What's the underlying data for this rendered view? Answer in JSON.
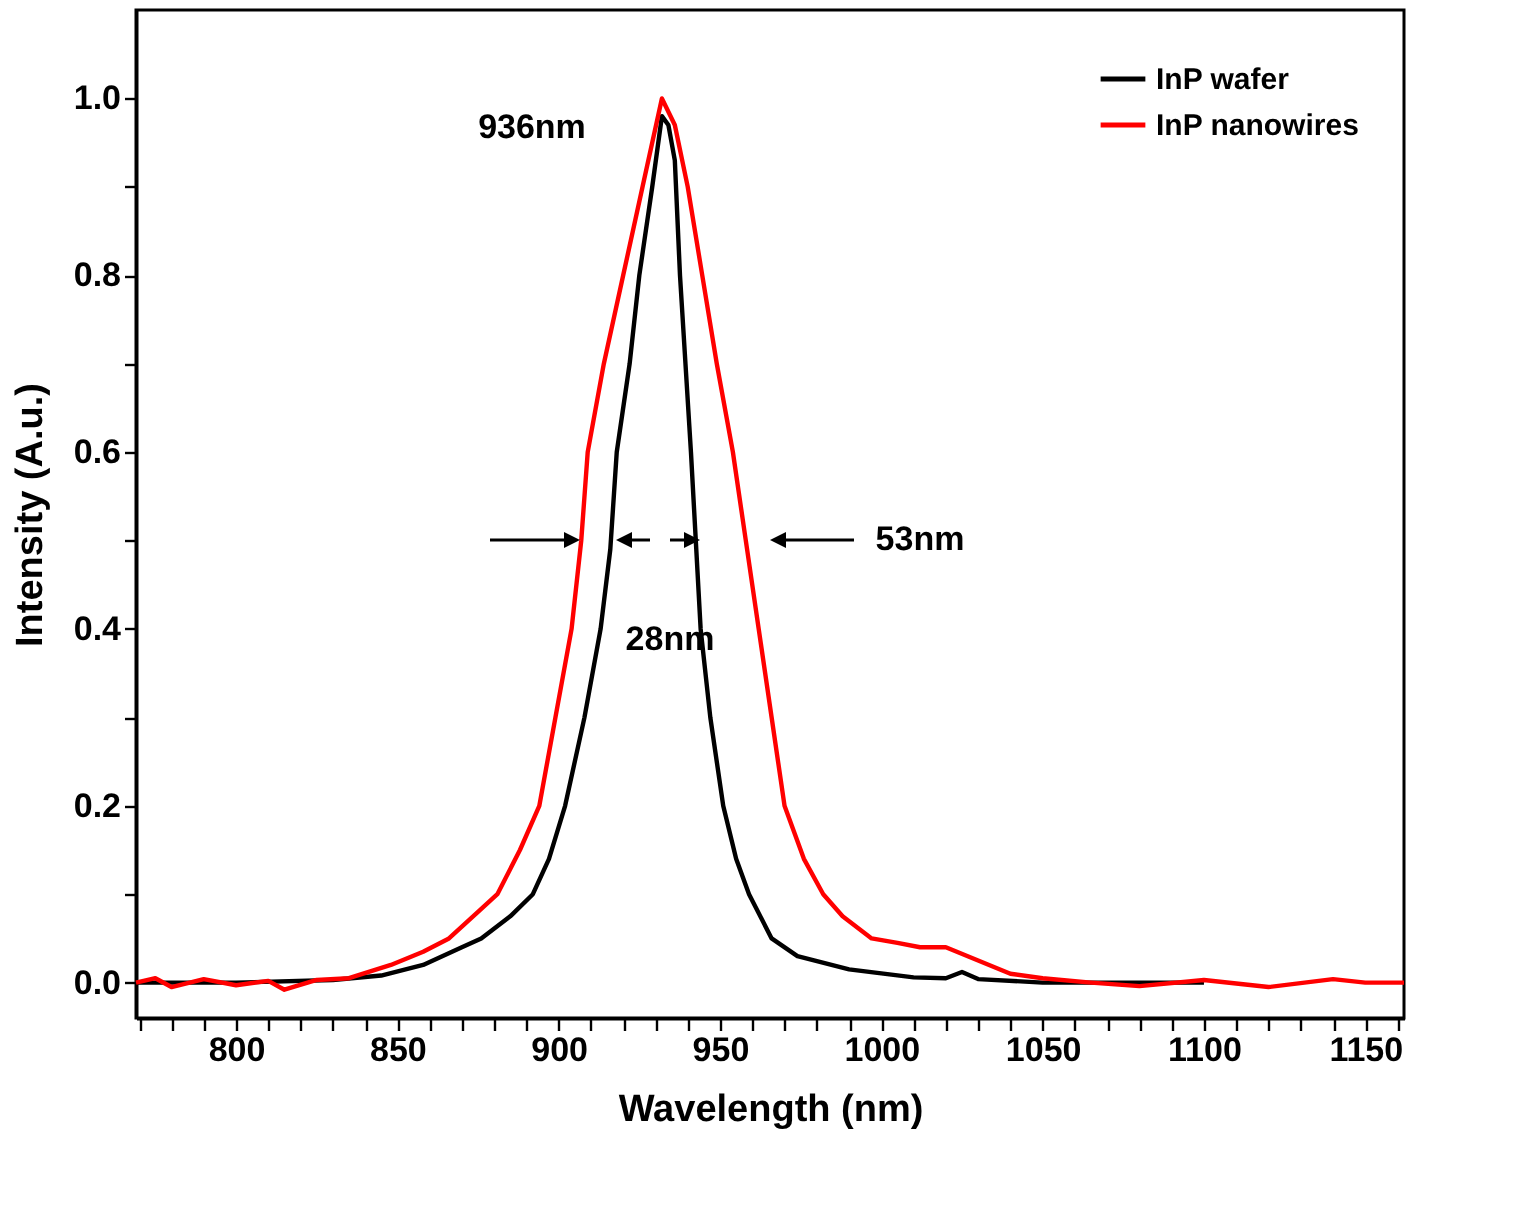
{
  "chart_data": {
    "type": "line",
    "xlabel": "Wavelength (nm)",
    "ylabel": "Intensity (A.u.)",
    "xlim": [
      769,
      1162
    ],
    "ylim": [
      -0.04,
      1.1
    ],
    "xticks": [
      {
        "value": 770,
        "label": null
      },
      {
        "value": 780,
        "label": null
      },
      {
        "value": 790,
        "label": null
      },
      800,
      {
        "value": 810,
        "label": null
      },
      {
        "value": 820,
        "label": null
      },
      {
        "value": 830,
        "label": null
      },
      {
        "value": 840,
        "label": null
      },
      850,
      {
        "value": 860,
        "label": null
      },
      {
        "value": 870,
        "label": null
      },
      {
        "value": 880,
        "label": null
      },
      {
        "value": 890,
        "label": null
      },
      900,
      {
        "value": 910,
        "label": null
      },
      {
        "value": 920,
        "label": null
      },
      {
        "value": 930,
        "label": null
      },
      {
        "value": 940,
        "label": null
      },
      950,
      {
        "value": 960,
        "label": null
      },
      {
        "value": 970,
        "label": null
      },
      {
        "value": 980,
        "label": null
      },
      {
        "value": 990,
        "label": null
      },
      1000,
      {
        "value": 1010,
        "label": null
      },
      {
        "value": 1020,
        "label": null
      },
      {
        "value": 1030,
        "label": null
      },
      {
        "value": 1040,
        "label": null
      },
      1050,
      {
        "value": 1060,
        "label": null
      },
      {
        "value": 1070,
        "label": null
      },
      {
        "value": 1080,
        "label": null
      },
      {
        "value": 1090,
        "label": null
      },
      1100,
      {
        "value": 1110,
        "label": null
      },
      {
        "value": 1120,
        "label": null
      },
      {
        "value": 1130,
        "label": null
      },
      {
        "value": 1140,
        "label": null
      },
      1150,
      {
        "value": 1160,
        "label": null
      }
    ],
    "yticks": [
      {
        "value": 0,
        "label": "0.0"
      },
      {
        "value": 0.1,
        "label": null
      },
      0.2,
      {
        "value": 0.3,
        "label": null
      },
      0.4,
      {
        "value": 0.5,
        "label": null
      },
      0.6,
      {
        "value": 0.7,
        "label": null
      },
      0.8,
      {
        "value": 0.9,
        "label": null
      },
      {
        "value": 1,
        "label": "1.0"
      }
    ],
    "grid": false,
    "legend": "top right",
    "line_style": "solid",
    "marker": "none",
    "annotations": [
      "936nm",
      "53nm",
      "28nm"
    ],
    "series": [
      {
        "name": "InP wafer",
        "color": "#000000",
        "x": [
          769,
          800,
          830,
          845,
          858,
          870,
          876,
          885,
          892,
          897,
          902,
          908,
          913,
          916,
          918,
          922,
          925,
          929,
          932,
          934,
          936,
          937.6,
          941,
          944,
          947,
          951,
          955,
          959,
          966,
          974,
          990,
          1010,
          1020,
          1025,
          1030,
          1050,
          1100
        ],
        "values": [
          0,
          0,
          0.003,
          0.008,
          0.02,
          0.04,
          0.05,
          0.075,
          0.1,
          0.14,
          0.2,
          0.3,
          0.4,
          0.49,
          0.6,
          0.7,
          0.8,
          0.9,
          0.98,
          0.97,
          0.93,
          0.8,
          0.6,
          0.4,
          0.3,
          0.2,
          0.14,
          0.1,
          0.05,
          0.03,
          0.015,
          0.006,
          0.005,
          0.012,
          0.004,
          0.0,
          0.0
        ]
      },
      {
        "name": "InP nanowires",
        "color": "#ff0000",
        "x": [
          769,
          775,
          780,
          790,
          800,
          810,
          815,
          825,
          835,
          848,
          858,
          866,
          875,
          881,
          888,
          894,
          899,
          904,
          907,
          909,
          914,
          920,
          926,
          932,
          936,
          940,
          944.5,
          949,
          954,
          958,
          962,
          966,
          970,
          976,
          982,
          988,
          997,
          1005,
          1012,
          1020,
          1030,
          1040,
          1050,
          1065,
          1080,
          1100,
          1120,
          1140,
          1150,
          1162
        ],
        "values": [
          0,
          0.005,
          -0.005,
          0.004,
          -0.003,
          0.002,
          -0.008,
          0.003,
          0.005,
          0.02,
          0.035,
          0.05,
          0.08,
          0.1,
          0.15,
          0.2,
          0.3,
          0.4,
          0.5,
          0.6,
          0.7,
          0.8,
          0.9,
          1.0,
          0.97,
          0.9,
          0.8,
          0.7,
          0.6,
          0.5,
          0.4,
          0.3,
          0.2,
          0.14,
          0.1,
          0.075,
          0.05,
          0.045,
          0.04,
          0.04,
          0.025,
          0.01,
          0.005,
          0,
          -0.004,
          0.003,
          -0.005,
          0.004,
          0,
          0
        ]
      }
    ]
  }
}
